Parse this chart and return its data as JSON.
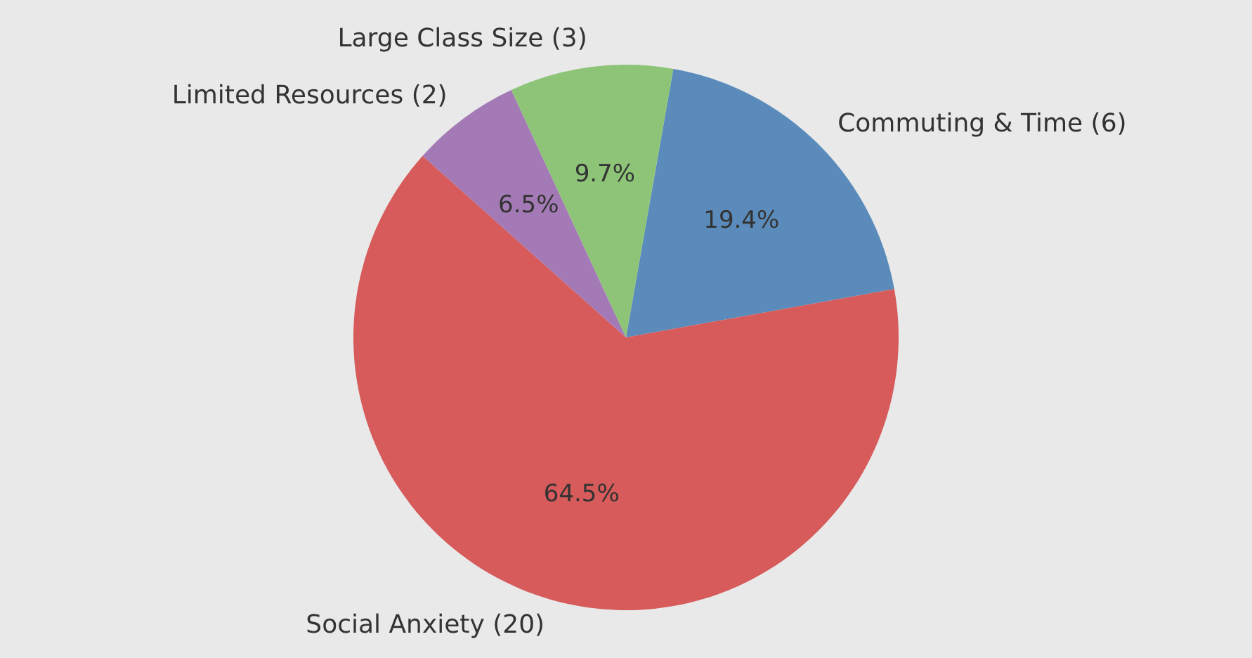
{
  "chart_data": {
    "type": "pie",
    "categories": [
      "Commuting & Time (6)",
      "Social Anxiety (20)",
      "Limited Resources (2)",
      "Large Class Size (3)"
    ],
    "values": [
      19.4,
      64.5,
      6.5,
      9.7
    ],
    "colors": [
      "#5a8bbb",
      "#d65b5a",
      "#a47ab6",
      "#8ec478"
    ],
    "value_labels": [
      "19.4%",
      "64.5%",
      "6.5%",
      "9.7%"
    ],
    "legend": false
  }
}
